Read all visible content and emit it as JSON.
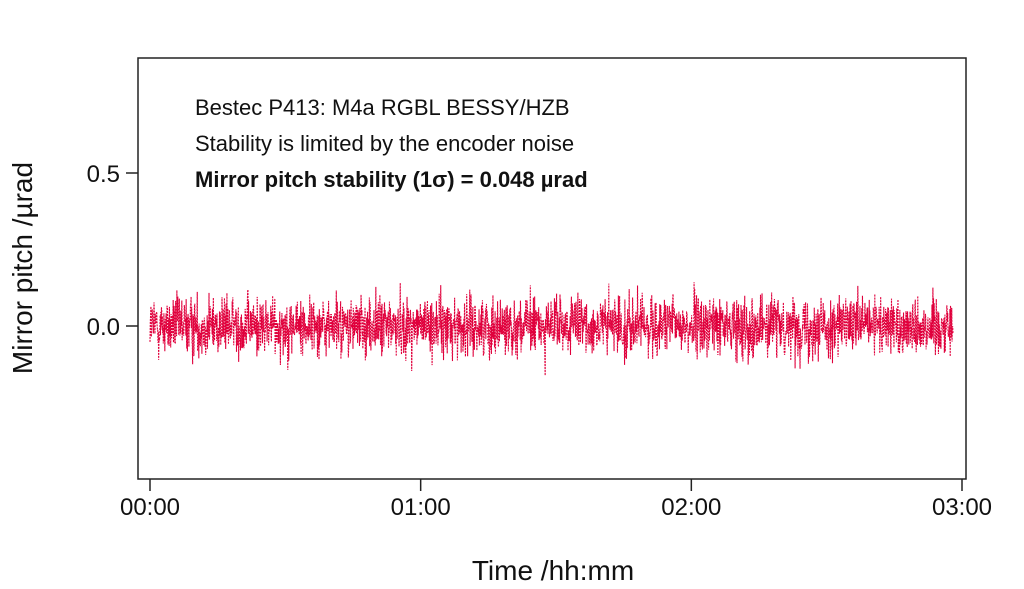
{
  "chart_data": {
    "type": "line",
    "title": "",
    "xlabel": "Time /hh:mm",
    "ylabel": "Mirror pitch /µrad",
    "x_unit": "minutes",
    "xlim": [
      0,
      180
    ],
    "ylim": [
      -0.5,
      0.85
    ],
    "x_ticks": [
      {
        "value": 0,
        "label": "00:00"
      },
      {
        "value": 60,
        "label": "01:00"
      },
      {
        "value": 120,
        "label": "02:00"
      },
      {
        "value": 180,
        "label": "03:00"
      }
    ],
    "y_ticks": [
      {
        "value": 0.0,
        "label": "0.0"
      },
      {
        "value": 0.5,
        "label": "0.5"
      }
    ],
    "grid": false,
    "annotations": [
      {
        "text": "Bestec P413: M4a RGBL BESSY/HZB",
        "bold": false
      },
      {
        "text": "Stability is limited by the encoder noise",
        "bold": false
      },
      {
        "text": "Mirror pitch stability (1σ) = 0.048 µrad",
        "bold": true
      }
    ],
    "series": [
      {
        "color": "#e0003c",
        "style": "dotted",
        "x_range": [
          0,
          178
        ],
        "mean": 0.0,
        "sigma": 0.048,
        "approx_min": -0.2,
        "approx_max": 0.22
      }
    ]
  }
}
